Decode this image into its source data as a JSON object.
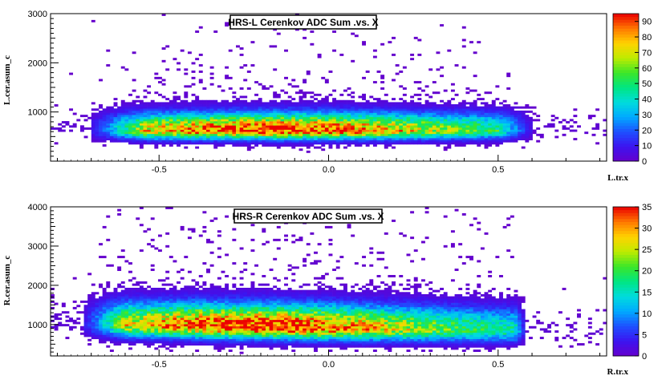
{
  "chart_data": [
    {
      "type": "heatmap",
      "title": "HRS-L Cerenkov ADC Sum .vs. X",
      "xlabel": "L.tr.x",
      "ylabel": "L.cer.asum_c",
      "xlim": [
        -0.82,
        0.82
      ],
      "ylim": [
        0,
        3000
      ],
      "x_ticks": [
        -0.5,
        0.0,
        0.5
      ],
      "x_tick_labels": [
        "-0.5",
        "0.0",
        "0.5"
      ],
      "y_ticks": [
        1000,
        2000,
        3000
      ],
      "y_tick_labels": [
        "1000",
        "2000",
        "3000"
      ],
      "z_range": [
        0,
        95
      ],
      "z_ticks": [
        0,
        10,
        20,
        30,
        40,
        50,
        60,
        70,
        80,
        90
      ],
      "z_tick_labels": [
        "0",
        "10",
        "20",
        "30",
        "40",
        "50",
        "60",
        "70",
        "80",
        "90"
      ],
      "density": {
        "x_extent": [
          -0.7,
          0.6
        ],
        "core_x": [
          -0.55,
          0.5
        ],
        "y_peak": 650,
        "y_spread": 230,
        "x_peak": -0.15,
        "peak_count": 90
      }
    },
    {
      "type": "heatmap",
      "title": "HRS-R Cerenkov ADC Sum .vs. X",
      "xlabel": "R.tr.x",
      "ylabel": "R.cer.asum_c",
      "xlim": [
        -0.82,
        0.82
      ],
      "ylim": [
        200,
        4000
      ],
      "x_ticks": [
        -0.5,
        0.0,
        0.5
      ],
      "x_tick_labels": [
        "-0.5",
        "0.0",
        "0.5"
      ],
      "y_ticks": [
        1000,
        2000,
        3000,
        4000
      ],
      "y_tick_labels": [
        "1000",
        "2000",
        "3000",
        "4000"
      ],
      "z_range": [
        0,
        35
      ],
      "z_ticks": [
        0,
        5,
        10,
        15,
        20,
        25,
        30,
        35
      ],
      "z_tick_labels": [
        "0",
        "5",
        "10",
        "15",
        "20",
        "25",
        "30",
        "35"
      ],
      "density": {
        "x_extent": [
          -0.72,
          0.58
        ],
        "core_x": [
          -0.6,
          0.55
        ],
        "y_peak_left": 1050,
        "y_peak_right": 850,
        "y_spread": 380,
        "x_peak": -0.2,
        "peak_count": 34
      }
    }
  ]
}
